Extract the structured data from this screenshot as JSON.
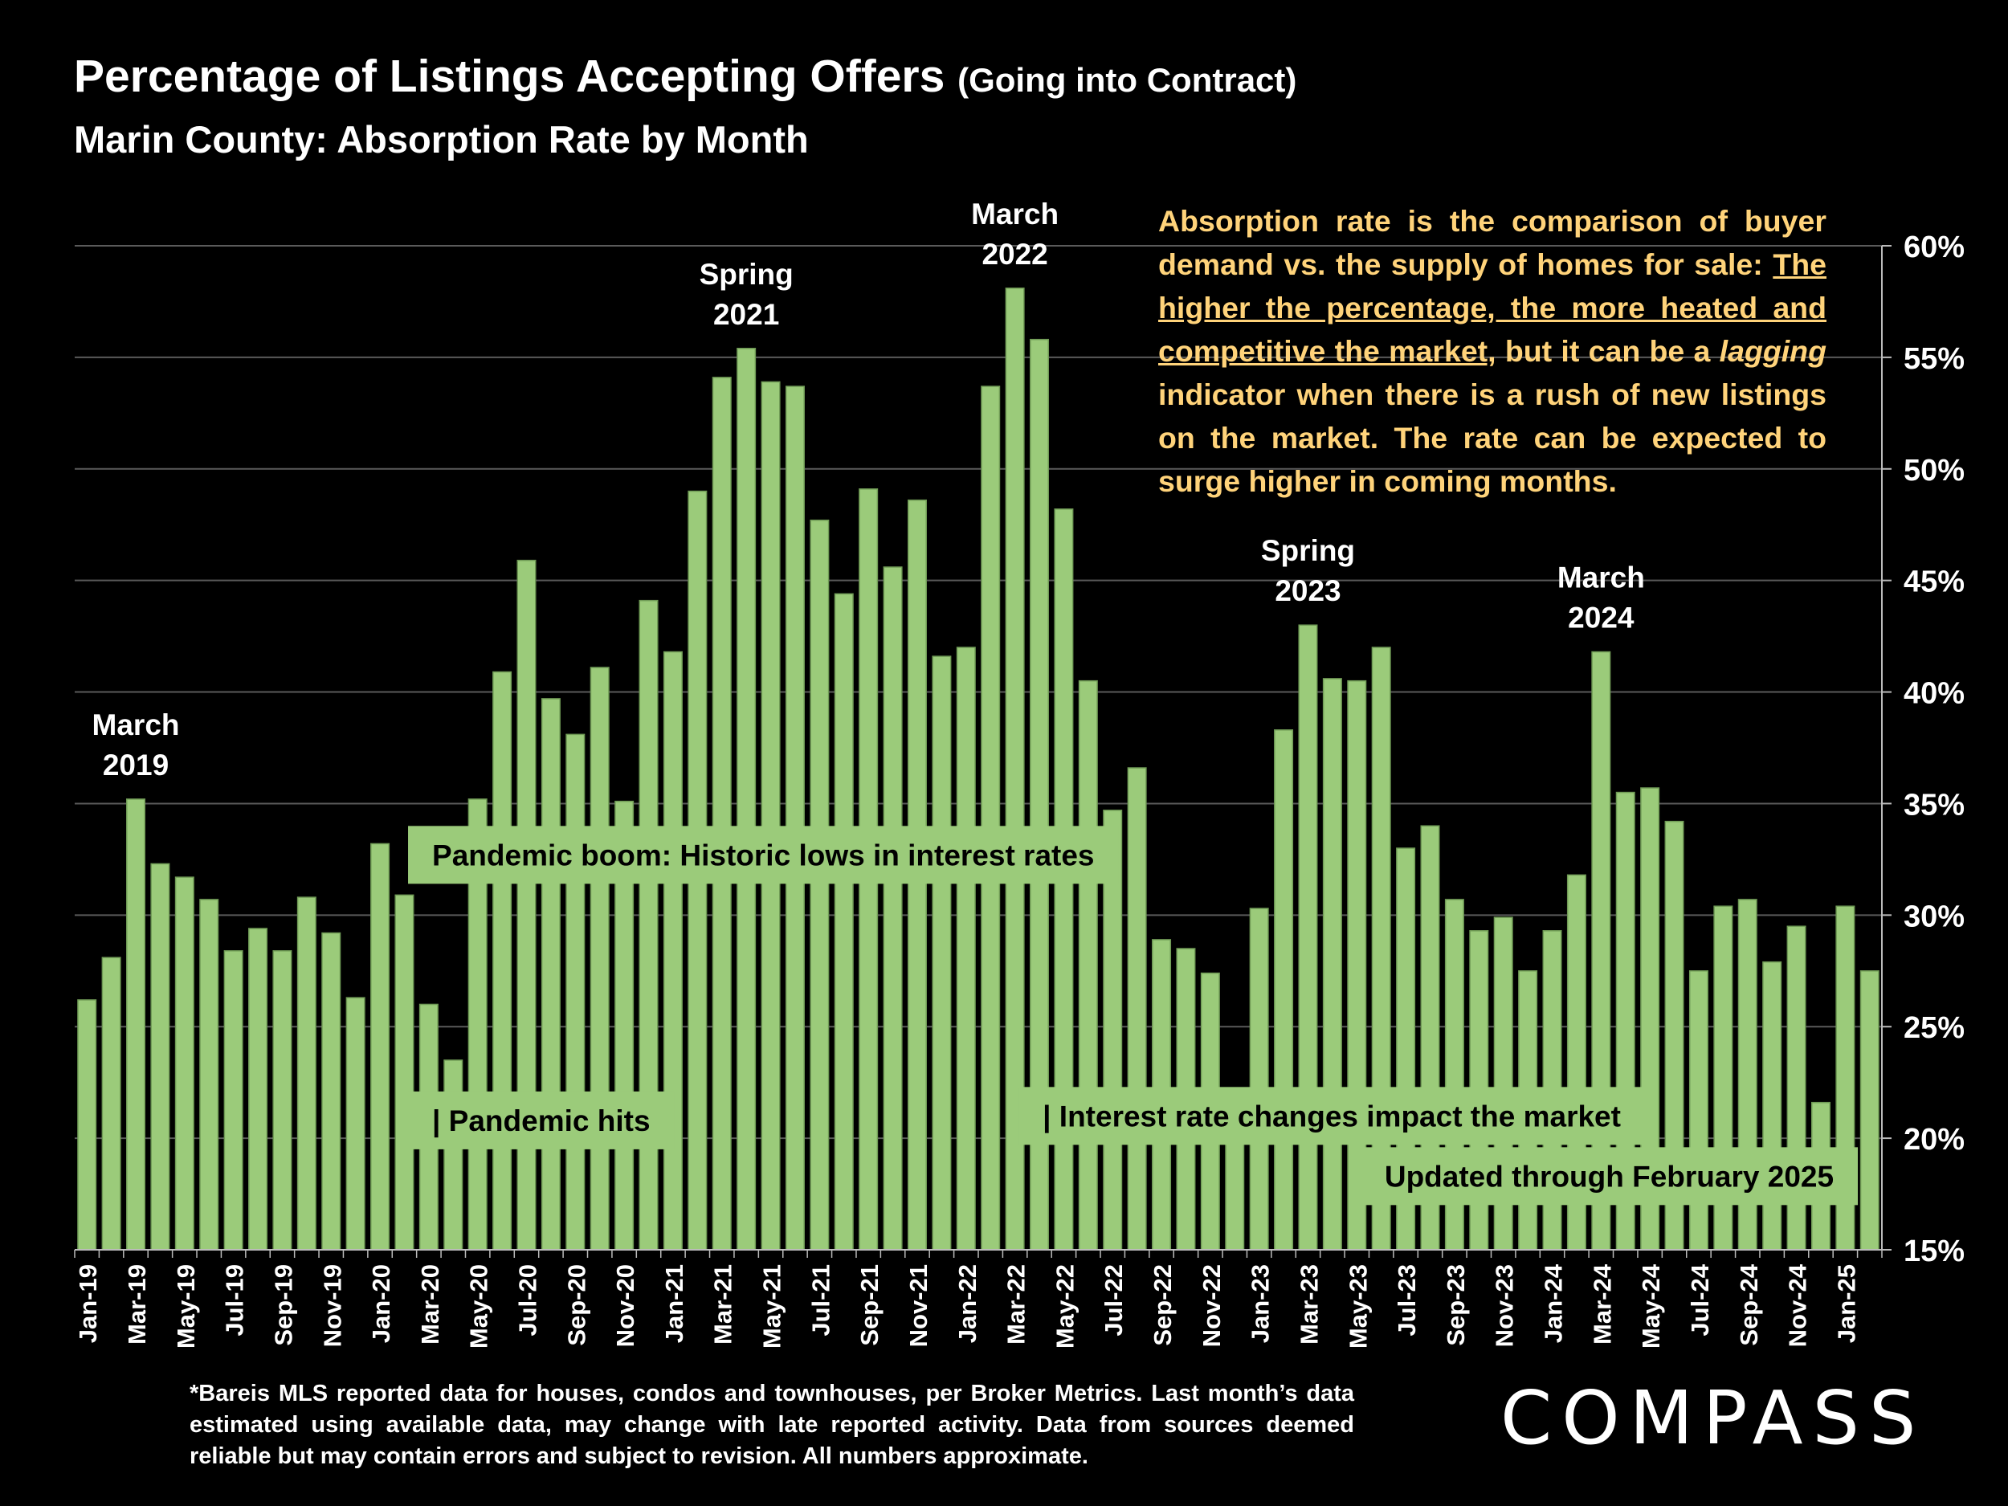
{
  "title": {
    "main": "Percentage of Listings Accepting Offers",
    "paren": "(Going into Contract)"
  },
  "subtitle": "Marin County:  Absorption Rate by Month",
  "note": {
    "p1": "Absorption rate is the comparison of buyer demand vs. the supply of homes for sale: ",
    "underlined": "The higher the percentage, the more heated and competitive the market,",
    "p2": " but it can be a ",
    "italic": "lagging",
    "p3": " indicator when there is a rush of new listings on the market. The rate can be expected to surge higher in coming months."
  },
  "footnote": "*Bareis MLS reported data for houses, condos and townhouses, per Broker Metrics. Last month’s data estimated using available data, may change with late reported activity. Data from sources deemed reliable but may contain errors and subject to revision. All numbers approximate.",
  "brand": "COMPASS",
  "colors": {
    "bar": "#9bcb7a",
    "bar_edge": "#6f9a55",
    "background": "#000000",
    "note": "#ffd37a",
    "label_box": "#9bcb7a"
  },
  "chart_data": {
    "type": "bar",
    "title": "Percentage of Listings Accepting Offers (Going into Contract)",
    "subtitle": "Marin County:  Absorption Rate by Month",
    "ylabel": "",
    "ylim": [
      15,
      60
    ],
    "yticks": [
      "15%",
      "20%",
      "25%",
      "30%",
      "35%",
      "40%",
      "45%",
      "50%",
      "55%",
      "60%"
    ],
    "axis_side": "right",
    "categories": [
      "Jan-19",
      "Feb-19",
      "Mar-19",
      "Apr-19",
      "May-19",
      "Jun-19",
      "Jul-19",
      "Aug-19",
      "Sep-19",
      "Oct-19",
      "Nov-19",
      "Dec-19",
      "Jan-20",
      "Feb-20",
      "Mar-20",
      "Apr-20",
      "May-20",
      "Jun-20",
      "Jul-20",
      "Aug-20",
      "Sep-20",
      "Oct-20",
      "Nov-20",
      "Dec-20",
      "Jan-21",
      "Feb-21",
      "Mar-21",
      "Apr-21",
      "May-21",
      "Jun-21",
      "Jul-21",
      "Aug-21",
      "Sep-21",
      "Oct-21",
      "Nov-21",
      "Dec-21",
      "Jan-22",
      "Feb-22",
      "Mar-22",
      "Apr-22",
      "May-22",
      "Jun-22",
      "Jul-22",
      "Aug-22",
      "Sep-22",
      "Oct-22",
      "Nov-22",
      "Dec-22",
      "Jan-23",
      "Feb-23",
      "Mar-23",
      "Apr-23",
      "May-23",
      "Jun-23",
      "Jul-23",
      "Aug-23",
      "Sep-23",
      "Oct-23",
      "Nov-23",
      "Dec-23",
      "Jan-24",
      "Feb-24",
      "Mar-24",
      "Apr-24",
      "May-24",
      "Jun-24",
      "Jul-24",
      "Aug-24",
      "Sep-24",
      "Oct-24",
      "Nov-24",
      "Dec-24",
      "Jan-25",
      "Feb-25"
    ],
    "values": [
      26.2,
      28.1,
      35.2,
      32.3,
      31.7,
      30.7,
      28.4,
      29.4,
      28.4,
      30.8,
      29.2,
      26.3,
      33.2,
      30.9,
      26.0,
      23.5,
      35.2,
      40.9,
      45.9,
      39.7,
      38.1,
      41.1,
      35.1,
      44.1,
      41.8,
      49.0,
      54.1,
      55.4,
      53.9,
      53.7,
      47.7,
      44.4,
      49.1,
      45.6,
      48.6,
      41.6,
      42.0,
      53.7,
      58.1,
      55.8,
      48.2,
      40.5,
      34.7,
      36.6,
      28.9,
      28.5,
      27.4,
      21.2,
      30.3,
      38.3,
      43.0,
      40.6,
      40.5,
      42.0,
      33.0,
      34.0,
      30.7,
      29.3,
      29.9,
      27.5,
      29.3,
      31.8,
      41.8,
      35.5,
      35.7,
      34.2,
      27.5,
      30.4,
      30.7,
      27.9,
      29.5,
      21.6,
      30.4,
      27.5
    ],
    "tick_labels": [
      "Jan-19",
      "Mar-19",
      "May-19",
      "Jul-19",
      "Sep-19",
      "Nov-19",
      "Jan-20",
      "Mar-20",
      "May-20",
      "Jul-20",
      "Sep-20",
      "Nov-20",
      "Jan-21",
      "Mar-21",
      "May-21",
      "Jul-21",
      "Sep-21",
      "Nov-21",
      "Jan-22",
      "Mar-22",
      "May-22",
      "Jul-22",
      "Sep-22",
      "Nov-22",
      "Jan-23",
      "Mar-23",
      "May-23",
      "Jul-23",
      "Sep-23",
      "Nov-23",
      "Jan-24",
      "Mar-24",
      "May-24",
      "Jul-24",
      "Sep-24",
      "Nov-24",
      "Jan-25"
    ],
    "peak_annotations": [
      {
        "line1": "March",
        "line2": "2019",
        "index": 2
      },
      {
        "line1": "Spring",
        "line2": "2021",
        "index": 27
      },
      {
        "line1": "March",
        "line2": "2022",
        "index": 38
      },
      {
        "line1": "Spring",
        "line2": "2023",
        "index": 50
      },
      {
        "line1": "March",
        "line2": "2024",
        "index": 62
      }
    ],
    "event_labels": [
      {
        "text": "Pandemic boom: Historic lows in interest rates",
        "start_index": 14,
        "value": 32.7
      },
      {
        "text": "| Pandemic hits",
        "start_index": 14,
        "value": 20.8
      },
      {
        "text": "| Interest rate changes impact the market",
        "start_index": 39,
        "value": 21.0
      },
      {
        "text": "Updated through February 2025",
        "start_index": 53,
        "value": 18.3
      }
    ]
  }
}
